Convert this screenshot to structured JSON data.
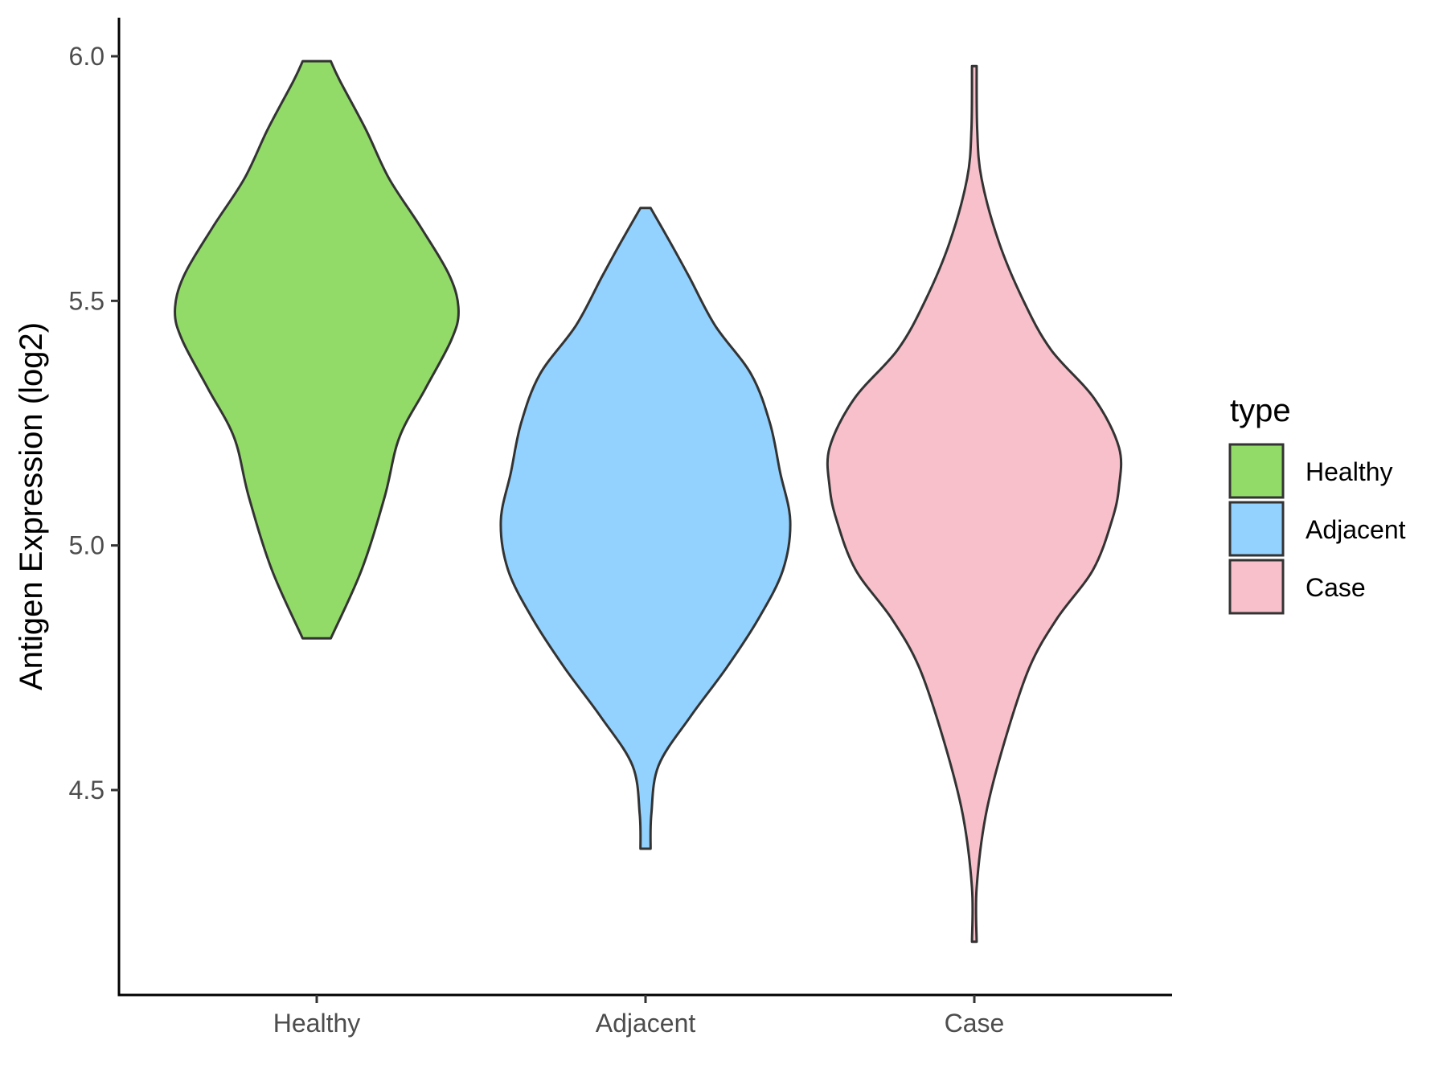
{
  "chart_data": {
    "type": "violin",
    "ylabel": "Antigen Expression (log2)",
    "xlabel": "",
    "categories": [
      "Healthy",
      "Adjacent",
      "Case"
    ],
    "ylim": [
      4.1,
      6.08
    ],
    "yticks": [
      4.5,
      5.0,
      5.5,
      6.0
    ],
    "ytick_labels": [
      "4.5",
      "5.0",
      "5.5",
      "6.0"
    ],
    "grid": false,
    "legend": {
      "title": "type",
      "position": "right",
      "entries": [
        "Healthy",
        "Adjacent",
        "Case"
      ]
    },
    "series": [
      {
        "category": "Healthy",
        "color": "#93DB69",
        "min": 4.81,
        "max": 5.99,
        "profile": [
          [
            4.81,
            0.097
          ],
          [
            4.95,
            0.31
          ],
          [
            5.1,
            0.47
          ],
          [
            5.22,
            0.57
          ],
          [
            5.32,
            0.75
          ],
          [
            5.42,
            0.93
          ],
          [
            5.48,
            0.98
          ],
          [
            5.55,
            0.92
          ],
          [
            5.65,
            0.72
          ],
          [
            5.75,
            0.5
          ],
          [
            5.85,
            0.34
          ],
          [
            5.95,
            0.16
          ],
          [
            5.99,
            0.097
          ]
        ]
      },
      {
        "category": "Adjacent",
        "color": "#93D2FE",
        "min": 4.38,
        "max": 5.69,
        "profile": [
          [
            4.38,
            0.035
          ],
          [
            4.45,
            0.04
          ],
          [
            4.55,
            0.09
          ],
          [
            4.65,
            0.31
          ],
          [
            4.75,
            0.56
          ],
          [
            4.85,
            0.78
          ],
          [
            4.95,
            0.95
          ],
          [
            5.05,
            1.0
          ],
          [
            5.15,
            0.93
          ],
          [
            5.25,
            0.86
          ],
          [
            5.35,
            0.73
          ],
          [
            5.45,
            0.48
          ],
          [
            5.55,
            0.3
          ],
          [
            5.62,
            0.17
          ],
          [
            5.69,
            0.035
          ]
        ]
      },
      {
        "category": "Case",
        "color": "#F8C0CB",
        "min": 4.19,
        "max": 5.98,
        "profile": [
          [
            4.19,
            0.016
          ],
          [
            4.3,
            0.016
          ],
          [
            4.45,
            0.08
          ],
          [
            4.6,
            0.21
          ],
          [
            4.75,
            0.38
          ],
          [
            4.85,
            0.57
          ],
          [
            4.95,
            0.82
          ],
          [
            5.05,
            0.95
          ],
          [
            5.12,
            1.0
          ],
          [
            5.2,
            1.0
          ],
          [
            5.3,
            0.83
          ],
          [
            5.4,
            0.53
          ],
          [
            5.5,
            0.34
          ],
          [
            5.62,
            0.17
          ],
          [
            5.75,
            0.05
          ],
          [
            5.85,
            0.02
          ],
          [
            5.98,
            0.016
          ]
        ]
      }
    ]
  }
}
